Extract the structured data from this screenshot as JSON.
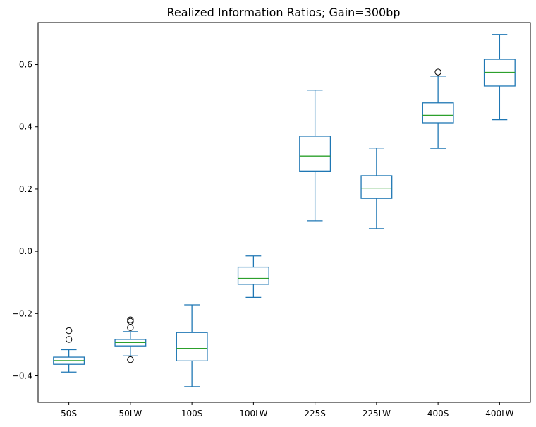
{
  "chart_data": {
    "type": "box",
    "title": "Realized Information Ratios; Gain=300bp",
    "xlabel": "",
    "ylabel": "",
    "ylim": [
      -0.485,
      0.735
    ],
    "yticks": [
      -0.4,
      -0.2,
      0.0,
      0.2,
      0.4,
      0.6
    ],
    "ytick_labels": [
      "−0.4",
      "−0.2",
      "0.0",
      "0.2",
      "0.4",
      "0.6"
    ],
    "grid": false,
    "legend": "none",
    "colors": {
      "box": "#1f77b4",
      "median": "#2ca02c",
      "outlier": "#000000"
    },
    "categories": [
      "50S",
      "50LW",
      "100S",
      "100LW",
      "225S",
      "225LW",
      "400S",
      "400LW"
    ],
    "boxes": [
      {
        "label": "50S",
        "whisker_low": -0.388,
        "q1": -0.363,
        "median": -0.351,
        "q3": -0.34,
        "whisker_high": -0.316,
        "outliers": [
          -0.255,
          -0.283
        ]
      },
      {
        "label": "50LW",
        "whisker_low": -0.336,
        "q1": -0.304,
        "median": -0.293,
        "q3": -0.283,
        "whisker_high": -0.258,
        "outliers": [
          -0.348,
          -0.245,
          -0.225,
          -0.22
        ]
      },
      {
        "label": "100S",
        "whisker_low": -0.435,
        "q1": -0.352,
        "median": -0.312,
        "q3": -0.261,
        "whisker_high": -0.172,
        "outliers": []
      },
      {
        "label": "100LW",
        "whisker_low": -0.148,
        "q1": -0.106,
        "median": -0.087,
        "q3": -0.051,
        "whisker_high": -0.015,
        "outliers": []
      },
      {
        "label": "225S",
        "whisker_low": 0.098,
        "q1": 0.258,
        "median": 0.306,
        "q3": 0.37,
        "whisker_high": 0.518,
        "outliers": []
      },
      {
        "label": "225LW",
        "whisker_low": 0.073,
        "q1": 0.17,
        "median": 0.203,
        "q3": 0.243,
        "whisker_high": 0.332,
        "outliers": []
      },
      {
        "label": "400S",
        "whisker_low": 0.331,
        "q1": 0.413,
        "median": 0.437,
        "q3": 0.477,
        "whisker_high": 0.563,
        "outliers": [
          0.576
        ]
      },
      {
        "label": "400LW",
        "whisker_low": 0.423,
        "q1": 0.531,
        "median": 0.575,
        "q3": 0.617,
        "whisker_high": 0.697,
        "outliers": []
      }
    ]
  }
}
